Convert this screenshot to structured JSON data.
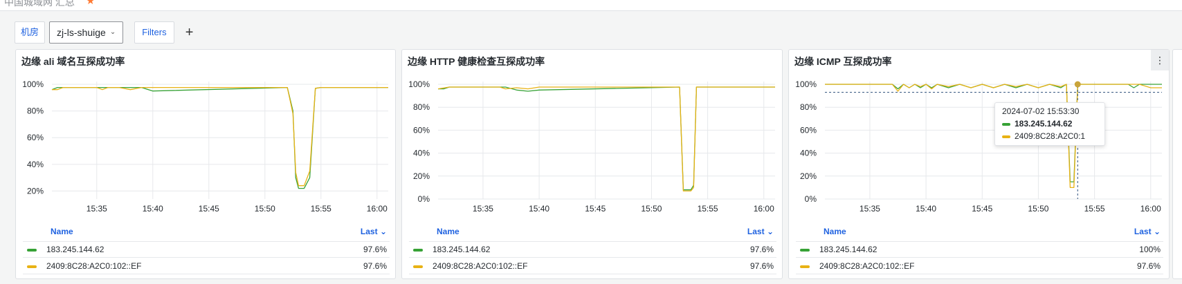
{
  "header": {
    "title_partial": "中国城域网 汇总",
    "star_icon": "star-icon"
  },
  "variables": {
    "label": "机房",
    "selected_value": "zj-ls-shuige",
    "filters_label": "Filters",
    "add_label": "+"
  },
  "colors": {
    "series1": "#37a236",
    "series2": "#e8b214",
    "grid": "#e6e8eb",
    "accent": "#1f62e0"
  },
  "legend_header": {
    "name": "Name",
    "last": "Last"
  },
  "series_names": [
    "183.245.144.62",
    "2409:8C28:A2C0:102::EF"
  ],
  "panels": [
    {
      "title": "边缘 ali 域名互探成功率",
      "legend": [
        {
          "name": "183.245.144.62",
          "last": "97.6%"
        },
        {
          "name": "2409:8C28:A2C0:102::EF",
          "last": "97.6%"
        }
      ],
      "chart_data": {
        "type": "line",
        "ylim": [
          14,
          100
        ],
        "yticks": [
          20,
          40,
          60,
          80,
          100
        ],
        "ytick_labels": [
          "20%",
          "40%",
          "60%",
          "80%",
          "100%"
        ],
        "xlim": [
          "15:31",
          "16:01"
        ],
        "xticks": [
          "15:35",
          "15:40",
          "15:45",
          "15:50",
          "15:55",
          "16:00"
        ],
        "series": [
          {
            "name": "183.245.144.62",
            "x": [
              "15:31",
              "15:31:30",
              "15:32",
              "15:37",
              "15:38",
              "15:39",
              "15:40",
              "15:52:00",
              "15:52:30",
              "15:52:45",
              "15:53:00",
              "15:53:30",
              "15:54:00",
              "15:54:30",
              "15:55",
              "16:01"
            ],
            "y": [
              96,
              97.6,
              97.6,
              97.6,
              97.6,
              97.6,
              95,
              97.6,
              80,
              30,
              22,
              22,
              30,
              97,
              97.6,
              97.6
            ]
          },
          {
            "name": "2409:8C28:A2C0:102::EF",
            "x": [
              "15:31",
              "15:31:30",
              "15:32",
              "15:35",
              "15:35:30",
              "15:36",
              "15:37",
              "15:38",
              "15:39",
              "15:39:30",
              "15:40",
              "15:52:00",
              "15:52:30",
              "15:52:45",
              "15:53:00",
              "15:53:30",
              "15:54:00",
              "15:54:30",
              "15:55",
              "16:01"
            ],
            "y": [
              96,
              96,
              97.6,
              97.6,
              96,
              97.6,
              97.6,
              96,
              97.6,
              97.6,
              97.6,
              97.6,
              78,
              34,
              24,
              24,
              35,
              97,
              97.6,
              97.6
            ]
          }
        ]
      }
    },
    {
      "title": "边缘 HTTP 健康检查互探成功率",
      "legend": [
        {
          "name": "183.245.144.62",
          "last": "97.6%"
        },
        {
          "name": "2409:8C28:A2C0:102::EF",
          "last": "97.6%"
        }
      ],
      "chart_data": {
        "type": "line",
        "ylim": [
          0,
          100
        ],
        "yticks": [
          0,
          20,
          40,
          60,
          80,
          100
        ],
        "ytick_labels": [
          "0%",
          "20%",
          "40%",
          "60%",
          "80%",
          "100%"
        ],
        "xlim": [
          "15:31",
          "16:01"
        ],
        "xticks": [
          "15:35",
          "15:40",
          "15:45",
          "15:50",
          "15:55",
          "16:00"
        ],
        "series": [
          {
            "name": "183.245.144.62",
            "x": [
              "15:31",
              "15:31:30",
              "15:32",
              "15:37",
              "15:38",
              "15:39",
              "15:40",
              "15:52:30",
              "15:52:50",
              "15:53:30",
              "15:53:45",
              "15:54:00",
              "16:01"
            ],
            "y": [
              96,
              96,
              97.6,
              97.6,
              95,
              94,
              95,
              97.6,
              8,
              8,
              12,
              97.6,
              97.6
            ]
          },
          {
            "name": "2409:8C28:A2C0:102::EF",
            "x": [
              "15:31",
              "15:32",
              "15:36:30",
              "15:37",
              "15:38",
              "15:39",
              "15:40",
              "15:52:30",
              "15:52:50",
              "15:53:30",
              "15:53:45",
              "15:54:00",
              "16:01"
            ],
            "y": [
              96,
              97.6,
              97.6,
              96,
              97,
              96,
              97.6,
              97.6,
              7,
              7,
              10,
              97.6,
              97.6
            ]
          }
        ]
      }
    },
    {
      "title": "边缘 ICMP 互探成功率",
      "legend": [
        {
          "name": "183.245.144.62",
          "last": "100%"
        },
        {
          "name": "2409:8C28:A2C0:102::EF",
          "last": "97.6%"
        }
      ],
      "chart_data": {
        "type": "line",
        "ylim": [
          0,
          100
        ],
        "yticks": [
          0,
          20,
          40,
          60,
          80,
          100
        ],
        "ytick_labels": [
          "0%",
          "20%",
          "40%",
          "60%",
          "80%",
          "100%"
        ],
        "xlim": [
          "15:31",
          "16:01"
        ],
        "xticks": [
          "15:35",
          "15:40",
          "15:45",
          "15:50",
          "15:55",
          "16:00"
        ],
        "crosshair_time": "15:53:30",
        "crosshair_value": 93,
        "series": [
          {
            "name": "183.245.144.62",
            "x": [
              "15:31",
              "15:37",
              "15:37:30",
              "15:38",
              "15:38:30",
              "15:39",
              "15:39:30",
              "15:40",
              "15:40:30",
              "15:41",
              "15:42",
              "15:43",
              "15:44",
              "15:45",
              "15:46",
              "15:47",
              "15:48",
              "15:49",
              "15:50",
              "15:51",
              "15:52",
              "15:52:30",
              "15:52:50",
              "15:53:10",
              "15:53:30",
              "15:58",
              "15:58:30",
              "15:59",
              "16:00",
              "16:01"
            ],
            "y": [
              100,
              100,
              96,
              100,
              97,
              100,
              97,
              100,
              97,
              100,
              97,
              100,
              97,
              100,
              97,
              100,
              97,
              100,
              97,
              100,
              97,
              100,
              15,
              15,
              100,
              100,
              97,
              100,
              100,
              100
            ]
          },
          {
            "name": "2409:8C28:A2C0:102::EF",
            "x": [
              "15:31",
              "15:37",
              "15:37:30",
              "15:38",
              "15:38:30",
              "15:39",
              "15:39:30",
              "15:40",
              "15:40:30",
              "15:41",
              "15:42",
              "15:43",
              "15:44",
              "15:45",
              "15:46",
              "15:47",
              "15:48",
              "15:49",
              "15:50",
              "15:51",
              "15:52",
              "15:52:30",
              "15:52:50",
              "15:53:10",
              "15:53:30",
              "15:59",
              "16:00",
              "16:01"
            ],
            "y": [
              100,
              100,
              94,
              100,
              97,
              100,
              98,
              100,
              96,
              100,
              98,
              100,
              97,
              100,
              97,
              100,
              98,
              100,
              97,
              100,
              98,
              100,
              10,
              10,
              100,
              100,
              97,
              97
            ]
          }
        ]
      }
    }
  ],
  "tooltip": {
    "time": "2024-07-02 15:53:30",
    "rows": [
      {
        "name": "183.245.144.62"
      },
      {
        "name": "2409:8C28:A2C0:1"
      }
    ]
  }
}
